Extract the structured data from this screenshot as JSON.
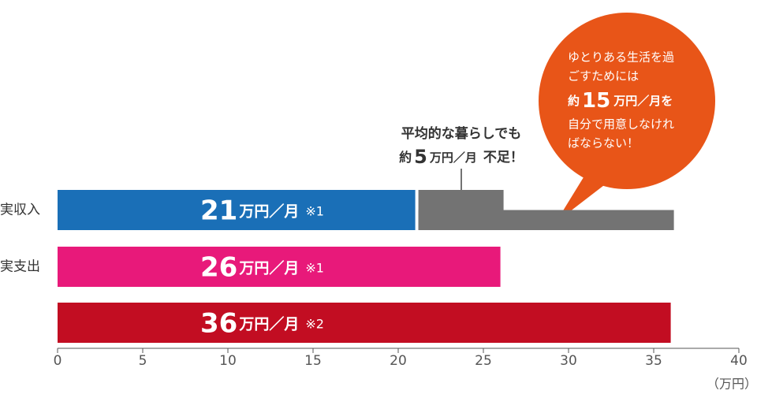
{
  "chart_data": {
    "type": "bar",
    "orientation": "horizontal",
    "categories": [
      "実収入",
      "実支出",
      null
    ],
    "values": [
      21,
      26,
      36
    ],
    "colors": [
      "#1a6fb7",
      "#e8197a",
      "#c20d22"
    ],
    "unit": "万円／月",
    "notes": [
      "※1",
      "※1",
      "※2"
    ],
    "xlim": [
      0,
      40
    ],
    "xticks": [
      0,
      5,
      10,
      15,
      20,
      25,
      30,
      35,
      40
    ],
    "x_label": "（万円）",
    "shortfall": {
      "color": "#737373",
      "segments": [
        {
          "start": 21,
          "value": 5
        },
        {
          "start": 21,
          "value": 15
        }
      ]
    },
    "annotation": {
      "line1": "平均的な暮らしでも",
      "prefix": "約",
      "unit": "万円／月",
      "suffix": "不足！"
    },
    "bubble": {
      "color": "#e85518",
      "line1": "ゆとりある生活を過",
      "line2": "ごすためには",
      "prefix": "約",
      "unit": "万円／月を",
      "line4": "自分で用意しなけれ",
      "line5": "ばならない！"
    }
  }
}
